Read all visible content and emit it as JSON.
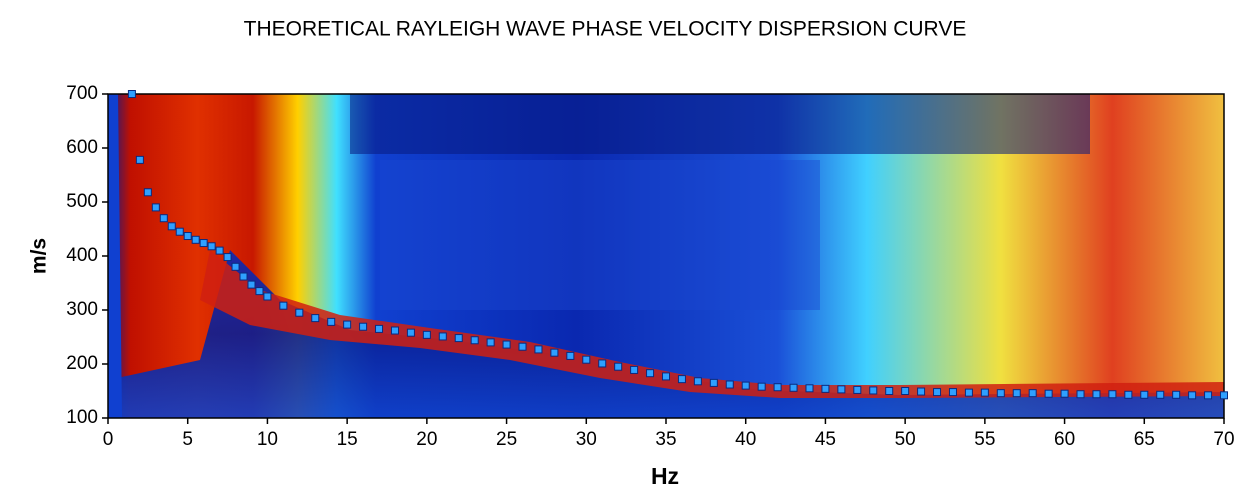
{
  "chart_data": {
    "type": "scatter",
    "title": "THEORETICAL RAYLEIGH WAVE PHASE VELOCITY DISPERSION CURVE",
    "x_label": "Hz",
    "y_label": "m/s",
    "x": [
      1.5,
      2,
      2.5,
      3,
      3.5,
      4,
      4.5,
      5,
      5.5,
      6,
      6.5,
      7,
      7.5,
      8,
      8.5,
      9,
      9.5,
      10,
      11,
      12,
      13,
      14,
      15,
      16,
      17,
      18,
      19,
      20,
      21,
      22,
      23,
      24,
      25,
      26,
      27,
      28,
      29,
      30,
      31,
      32,
      33,
      34,
      35,
      36,
      37,
      38,
      39,
      40,
      41,
      42,
      43,
      44,
      45,
      46,
      47,
      48,
      49,
      50,
      51,
      52,
      53,
      54,
      55,
      56,
      57,
      58,
      59,
      60,
      61,
      62,
      63,
      64,
      65,
      66,
      67,
      68,
      69,
      70
    ],
    "values": [
      700,
      578,
      518,
      490,
      470,
      455,
      445,
      437,
      430,
      424,
      418,
      410,
      398,
      380,
      362,
      347,
      335,
      325,
      308,
      295,
      285,
      278,
      273,
      269,
      265,
      262,
      258,
      254,
      251,
      248,
      244,
      240,
      236,
      232,
      227,
      221,
      215,
      208,
      201,
      195,
      189,
      183,
      177,
      172,
      168,
      165,
      162,
      160,
      158,
      157,
      156,
      155,
      154,
      153,
      152,
      151,
      150,
      150,
      149,
      148,
      148,
      147,
      147,
      146,
      146,
      146,
      145,
      145,
      144,
      144,
      144,
      143,
      143,
      143,
      143,
      142,
      142,
      142
    ],
    "color": "#2fa0ff",
    "xlim": [
      0,
      70
    ],
    "xticks": [
      0,
      5,
      10,
      15,
      20,
      25,
      30,
      35,
      40,
      45,
      50,
      55,
      60,
      65,
      70
    ],
    "ylim": [
      100,
      700
    ],
    "yticks": [
      100,
      200,
      300,
      400,
      500,
      600,
      700
    ]
  }
}
